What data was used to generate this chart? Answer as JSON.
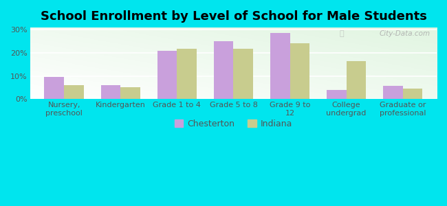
{
  "title": "School Enrollment by Level of School for Male Students",
  "categories": [
    "Nursery,\npreschool",
    "Kindergarten",
    "Grade 1 to 4",
    "Grade 5 to 8",
    "Grade 9 to\n12",
    "College\nundergrad",
    "Graduate or\nprofessional"
  ],
  "chesterton": [
    9.5,
    6.0,
    20.8,
    25.2,
    28.5,
    4.0,
    5.8
  ],
  "indiana": [
    6.0,
    5.0,
    21.8,
    21.8,
    24.2,
    16.5,
    4.5
  ],
  "chesterton_color": "#c9a0dc",
  "indiana_color": "#c8cc8e",
  "background_color": "#00e5ee",
  "yticks": [
    0,
    10,
    20,
    30
  ],
  "ylim": [
    0,
    31
  ],
  "legend_chesterton": "Chesterton",
  "legend_indiana": "Indiana",
  "title_fontsize": 13,
  "tick_fontsize": 8,
  "legend_fontsize": 9
}
